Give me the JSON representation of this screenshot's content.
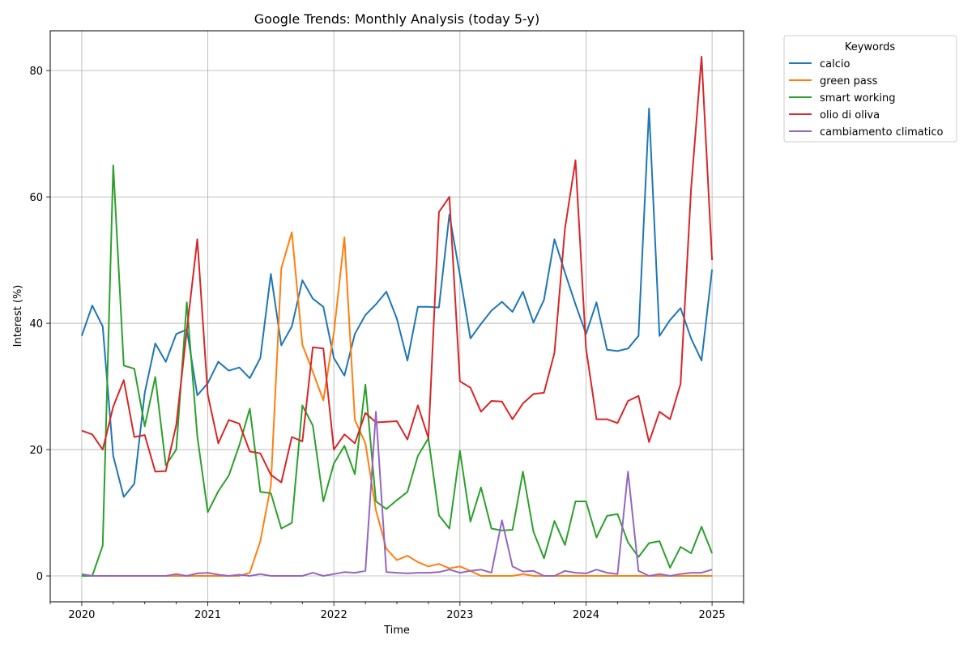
{
  "chart_data": {
    "type": "line",
    "title": "Google Trends: Monthly Analysis (today 5-y)",
    "xlabel": "Time",
    "ylabel": "Interest (%)",
    "ylim": [
      -4.1,
      86.3
    ],
    "xlim": [
      "2019-10-01",
      "2025-04-01"
    ],
    "grid": true,
    "x_ticks": [
      "2020",
      "2021",
      "2022",
      "2023",
      "2024",
      "2025"
    ],
    "y_ticks": [
      0,
      20,
      40,
      60,
      80
    ],
    "legend": {
      "title": "Keywords",
      "placement": "outside-top-right"
    },
    "x": [
      "2020-01",
      "2020-02",
      "2020-03",
      "2020-04",
      "2020-05",
      "2020-06",
      "2020-07",
      "2020-08",
      "2020-09",
      "2020-10",
      "2020-11",
      "2020-12",
      "2021-01",
      "2021-02",
      "2021-03",
      "2021-04",
      "2021-05",
      "2021-06",
      "2021-07",
      "2021-08",
      "2021-09",
      "2021-10",
      "2021-11",
      "2021-12",
      "2022-01",
      "2022-02",
      "2022-03",
      "2022-04",
      "2022-05",
      "2022-06",
      "2022-07",
      "2022-08",
      "2022-09",
      "2022-10",
      "2022-11",
      "2022-12",
      "2023-01",
      "2023-02",
      "2023-03",
      "2023-04",
      "2023-05",
      "2023-06",
      "2023-07",
      "2023-08",
      "2023-09",
      "2023-10",
      "2023-11",
      "2023-12",
      "2024-01",
      "2024-02",
      "2024-03",
      "2024-04",
      "2024-05",
      "2024-06",
      "2024-07",
      "2024-08",
      "2024-09",
      "2024-10",
      "2024-11",
      "2024-12",
      "2025-01"
    ],
    "series": [
      {
        "name": "calcio",
        "color": "#1f77b4",
        "values": [
          38,
          42.8,
          39.5,
          19,
          12.5,
          14.6,
          29,
          36.8,
          33.9,
          38.3,
          39,
          28.6,
          30.5,
          33.9,
          32.5,
          33,
          31.3,
          34.5,
          47.8,
          36.5,
          39.5,
          46.8,
          43.9,
          42.6,
          34.5,
          31.7,
          38.3,
          41.3,
          43,
          45,
          40.7,
          34.1,
          42.6,
          42.6,
          42.5,
          57.2,
          47.6,
          37.6,
          39.9,
          42,
          43.4,
          41.8,
          45,
          40.1,
          43.7,
          53.3,
          48,
          43,
          38.3,
          43.3,
          35.8,
          35.6,
          36,
          38,
          74,
          38,
          40.5,
          42.4,
          37.6,
          34.1,
          48.5
        ]
      },
      {
        "name": "green pass",
        "color": "#ff7f0e",
        "values": [
          0,
          0,
          0,
          0,
          0,
          0,
          0,
          0,
          0,
          0,
          0,
          0,
          0,
          0,
          0,
          0,
          0.5,
          5.5,
          14.3,
          48.7,
          54.4,
          36.6,
          32.3,
          27.8,
          38.5,
          53.6,
          24.7,
          21,
          10.4,
          4.3,
          2.5,
          3.2,
          2.2,
          1.5,
          1.9,
          1.2,
          1.5,
          0.8,
          0,
          0,
          0,
          0,
          0.3,
          0,
          0,
          0,
          0,
          0,
          0,
          0,
          0,
          0,
          0,
          0,
          0,
          0,
          0,
          0,
          0,
          0,
          0
        ]
      },
      {
        "name": "smart working",
        "color": "#2ca02c",
        "values": [
          0,
          0,
          4.8,
          65,
          33.3,
          32.8,
          23.7,
          31.5,
          17.5,
          20,
          43.3,
          22.1,
          10.1,
          13.4,
          15.9,
          20.7,
          26.5,
          13.3,
          13.1,
          7.5,
          8.4,
          27,
          23.8,
          11.8,
          17.8,
          20.6,
          16.1,
          30.3,
          11.8,
          10.6,
          12,
          13.3,
          19,
          21.8,
          9.6,
          7.5,
          19.8,
          8.6,
          14,
          7.5,
          7.2,
          7.3,
          16.5,
          7,
          2.8,
          8.7,
          4.9,
          11.8,
          11.8,
          6.1,
          9.5,
          9.8,
          5.3,
          3,
          5.2,
          5.5,
          1.3,
          4.6,
          3.6,
          7.8,
          3.6
        ]
      },
      {
        "name": "olio di oliva",
        "color": "#d62728",
        "values": [
          23,
          22.4,
          20,
          26.8,
          31,
          22,
          22.3,
          16.5,
          16.6,
          23.9,
          38.8,
          53.3,
          28.7,
          21,
          24.7,
          24.1,
          19.7,
          19.4,
          16,
          14.8,
          22,
          21.3,
          36.2,
          36,
          20,
          22.4,
          21,
          25.8,
          24.3,
          24.4,
          24.5,
          21.6,
          27,
          21.8,
          57.6,
          60,
          30.8,
          29.8,
          26,
          27.7,
          27.6,
          24.8,
          27.3,
          28.8,
          29,
          35.3,
          55,
          65.8,
          36,
          24.8,
          24.8,
          24.2,
          27.7,
          28.5,
          21.2,
          26,
          24.8,
          30.4,
          61.3,
          82.2,
          50
        ]
      },
      {
        "name": "cambiamento climatico",
        "color": "#9467bd",
        "values": [
          0.3,
          0,
          0,
          0,
          0,
          0,
          0,
          0,
          0,
          0.3,
          0,
          0.4,
          0.5,
          0.2,
          0,
          0.2,
          0,
          0.3,
          0,
          0,
          0,
          0,
          0.5,
          0,
          0.3,
          0.6,
          0.5,
          0.8,
          26,
          0.6,
          0.5,
          0.4,
          0.5,
          0.5,
          0.6,
          1,
          0.5,
          0.8,
          1,
          0.5,
          8.8,
          1.5,
          0.7,
          0.8,
          0,
          0,
          0.8,
          0.5,
          0.4,
          1,
          0.5,
          0.3,
          16.5,
          0.8,
          0,
          0.3,
          0,
          0.3,
          0.5,
          0.5,
          1
        ]
      }
    ]
  }
}
